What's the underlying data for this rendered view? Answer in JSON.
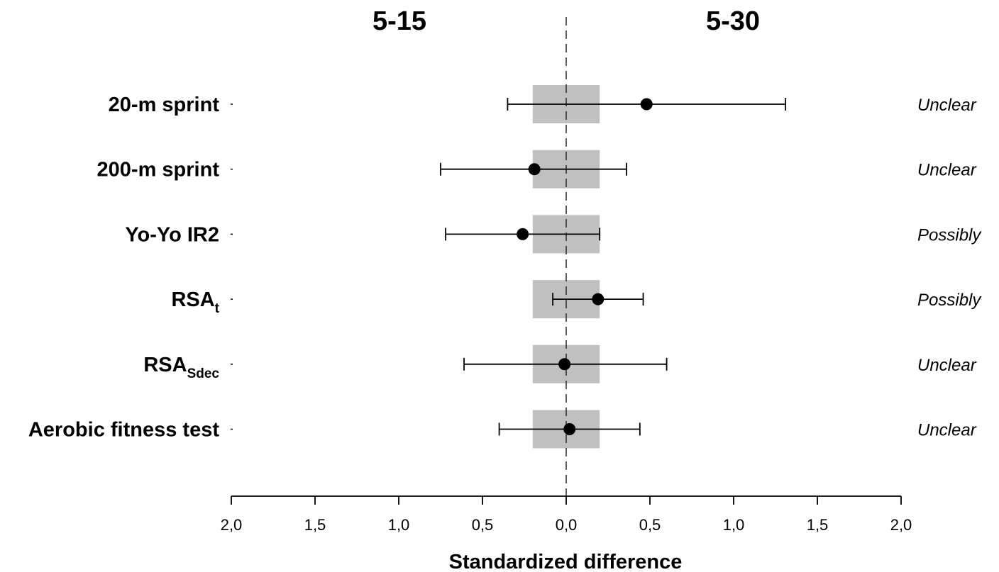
{
  "chart_data": {
    "type": "forest",
    "side_labels": {
      "left": "5-15",
      "right": "5-30"
    },
    "xlabel": "Standardized difference",
    "xlim": [
      -2.0,
      2.0
    ],
    "tick_labels": [
      "2,0",
      "1,5",
      "1,0",
      "0,5",
      "0,0",
      "0,5",
      "1,0",
      "1,5",
      "2,0"
    ],
    "tick_values": [
      -2.0,
      -1.5,
      -1.0,
      -0.5,
      0.0,
      0.5,
      1.0,
      1.5,
      2.0
    ],
    "trivial_band": [
      -0.2,
      0.2
    ],
    "trivial_band_color": "#c0c0c0",
    "reference_line": 0.0,
    "rows": [
      {
        "label_main": "20-m sprint",
        "label_sub": "",
        "estimate": 0.48,
        "ci_low": -0.35,
        "ci_high": 1.31,
        "verdict": "Unclear"
      },
      {
        "label_main": "200-m sprint",
        "label_sub": "",
        "estimate": -0.19,
        "ci_low": -0.75,
        "ci_high": 0.36,
        "verdict": "Unclear"
      },
      {
        "label_main": "Yo-Yo IR2",
        "label_sub": "",
        "estimate": -0.26,
        "ci_low": -0.72,
        "ci_high": 0.2,
        "verdict": "Possibly"
      },
      {
        "label_main": "RSA",
        "label_sub": "t",
        "estimate": 0.19,
        "ci_low": -0.08,
        "ci_high": 0.46,
        "verdict": "Possibly"
      },
      {
        "label_main": "RSA",
        "label_sub": "Sdec",
        "estimate": -0.01,
        "ci_low": -0.61,
        "ci_high": 0.6,
        "verdict": "Unclear"
      },
      {
        "label_main": "Aerobic fitness test",
        "label_sub": "",
        "estimate": 0.02,
        "ci_low": -0.4,
        "ci_high": 0.44,
        "verdict": "Unclear"
      }
    ]
  }
}
